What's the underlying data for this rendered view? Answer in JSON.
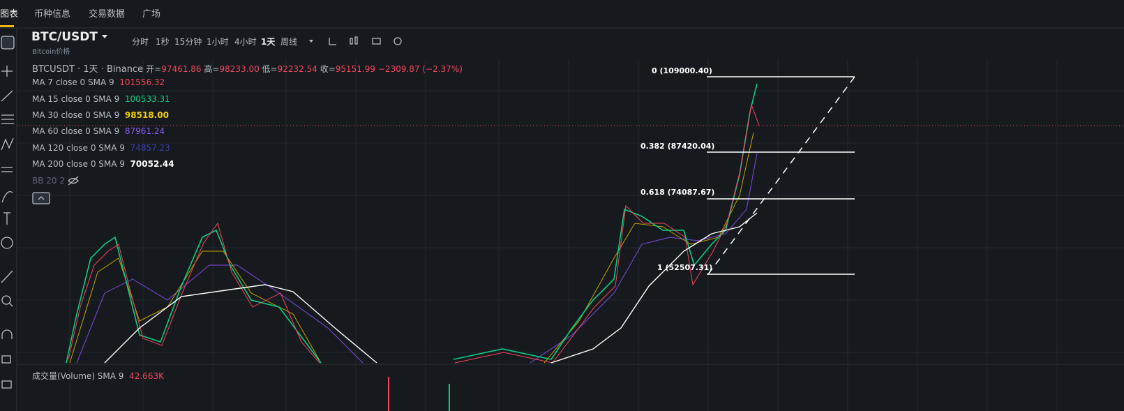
{
  "nav": {
    "tabs": [
      "图表",
      "币种信息",
      "交易数据",
      "广场"
    ]
  },
  "header": {
    "symbol": "BTC/USDT",
    "subtitle": "Bitcoin价格"
  },
  "intervals": [
    "分时",
    "1秒",
    "15分钟",
    "1小时",
    "4小时",
    "1天",
    "周线"
  ],
  "legend": {
    "title": "BTCUSDT · 1天 · Binance",
    "ohlc": [
      {
        "label": "开=",
        "value": "97461.86"
      },
      {
        "label": "高=",
        "value": "98233.00"
      },
      {
        "label": "低=",
        "value": "92232.54"
      },
      {
        "label": "收=",
        "value": "95151.99"
      }
    ],
    "change": "−2309.87 (−2.37%)"
  },
  "indicators": [
    {
      "name": "MA 7 close 0 SMA 9",
      "value": "101556.32"
    },
    {
      "name": "MA 15 close 0 SMA 9",
      "value": "100533.31"
    },
    {
      "name": "MA 30 close 0 SMA 9",
      "value": "98518.00"
    },
    {
      "name": "MA 60 close 0 SMA 9",
      "value": "87961.24"
    },
    {
      "name": "MA 120 close 0 SMA 9",
      "value": "74857.23"
    },
    {
      "name": "MA 200 close 0 SMA 9",
      "value": "70052.44"
    }
  ],
  "bb": "BB 20 2",
  "fib": [
    "0 (109000.40)",
    "0.382 (87420.04)",
    "0.618 (74087.67)",
    "1 (52507.31)"
  ],
  "volume": {
    "name": "成交量(Volume) SMA 9",
    "value": "42.663K"
  }
}
